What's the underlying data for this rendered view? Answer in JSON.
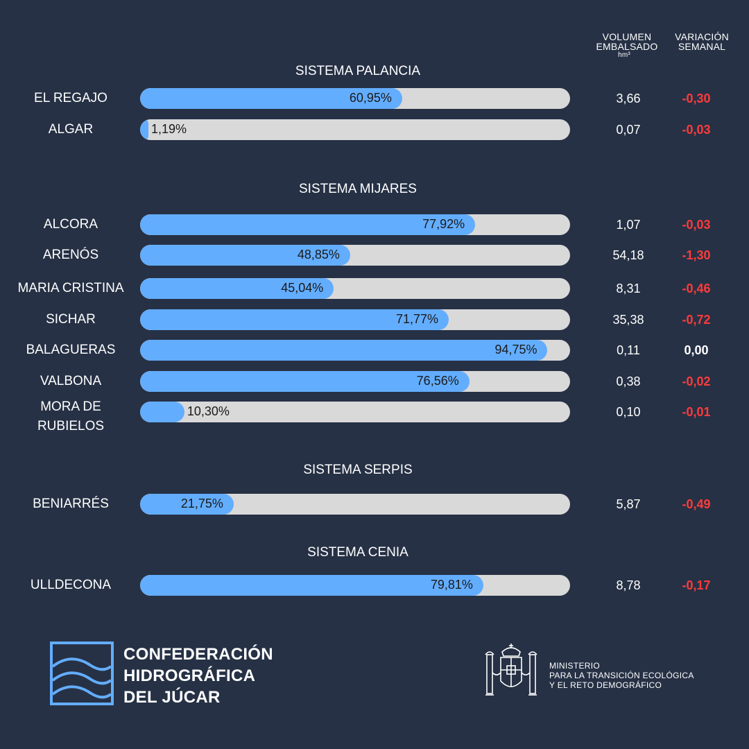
{
  "headers": {
    "volume_line1": "VOLUMEN",
    "volume_line2": "EMBALSADO",
    "volume_unit": "hm³",
    "variation_line1": "VARIACIÓN",
    "variation_line2": "SEMANAL"
  },
  "chart_data": {
    "type": "bar",
    "orientation": "horizontal",
    "value_unit": "% capacity",
    "groups": [
      {
        "title": "SISTEMA PALANCIA",
        "reservoirs": [
          {
            "name": "EL REGAJO",
            "pct": 60.95,
            "pct_label": "60,95%",
            "volume": "3,66",
            "variation": "-0,30"
          },
          {
            "name": "ALGAR",
            "pct": 1.19,
            "pct_label": "1,19%",
            "volume": "0,07",
            "variation": "-0,03"
          }
        ]
      },
      {
        "title": "SISTEMA MIJARES",
        "reservoirs": [
          {
            "name": "ALCORA",
            "pct": 77.92,
            "pct_label": "77,92%",
            "volume": "1,07",
            "variation": "-0,03"
          },
          {
            "name": "ARENÓS",
            "pct": 48.85,
            "pct_label": "48,85%",
            "volume": "54,18",
            "variation": "-1,30"
          },
          {
            "name": "MARIA CRISTINA",
            "pct": 45.04,
            "pct_label": "45,04%",
            "volume": "8,31",
            "variation": "-0,46"
          },
          {
            "name": "SICHAR",
            "pct": 71.77,
            "pct_label": "71,77%",
            "volume": "35,38",
            "variation": "-0,72"
          },
          {
            "name": "BALAGUERAS",
            "pct": 94.75,
            "pct_label": "94,75%",
            "volume": "0,11",
            "variation": "0,00"
          },
          {
            "name": "VALBONA",
            "pct": 76.56,
            "pct_label": "76,56%",
            "volume": "0,38",
            "variation": "-0,02"
          },
          {
            "name_line1": "MORA DE",
            "name_line2": "RUBIELOS",
            "pct": 10.3,
            "pct_label": "10,30%",
            "volume": "0,10",
            "variation": "-0,01"
          }
        ]
      },
      {
        "title": "SISTEMA SERPIS",
        "reservoirs": [
          {
            "name": "BENIARRÉS",
            "pct": 21.75,
            "pct_label": "21,75%",
            "volume": "5,87",
            "variation": "-0,49"
          }
        ]
      },
      {
        "title": "SISTEMA CENIA",
        "reservoirs": [
          {
            "name": "ULLDECONA",
            "pct": 79.81,
            "pct_label": "79,81%",
            "volume": "8,78",
            "variation": "-0,17"
          }
        ]
      }
    ]
  },
  "footer": {
    "chj_line1": "CONFEDERACIÓN",
    "chj_line2": "HIDROGRÁFICA",
    "chj_line3": "DEL JÚCAR",
    "ministry_line1": "MINISTERIO",
    "ministry_line2": "PARA LA TRANSICIÓN ECOLÓGICA",
    "ministry_line3": "Y EL RETO DEMOGRÁFICO"
  },
  "colors": {
    "background": "#263145",
    "bar_fill": "#63adfe",
    "bar_track": "#d9d9d9",
    "negative": "#ff3b3b"
  }
}
